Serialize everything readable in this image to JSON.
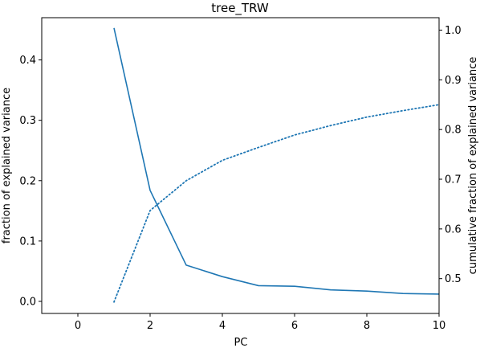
{
  "chart_data": {
    "type": "line",
    "title": "tree_TRW",
    "xlabel": "PC",
    "ylabel": "fraction of explained variance",
    "y2label": "cumulative fraction of explained variance",
    "xlim": [
      -1,
      10
    ],
    "ylim": [
      -0.02,
      0.47
    ],
    "y2lim": [
      0.43,
      1.025
    ],
    "xticks": [
      0,
      2,
      4,
      6,
      8,
      10
    ],
    "yticks": [
      0.0,
      0.1,
      0.2,
      0.3,
      0.4
    ],
    "y2ticks": [
      0.5,
      0.6,
      0.7,
      0.8,
      0.9,
      1.0
    ],
    "ytick_labels": [
      "0.0",
      "0.1",
      "0.2",
      "0.3",
      "0.4"
    ],
    "y2tick_labels": [
      "0.5",
      "0.6",
      "0.7",
      "0.8",
      "0.9",
      "1.0"
    ],
    "grid": false,
    "legend": "none",
    "series": [
      {
        "axis": "left",
        "style": "solid",
        "color": "#1f77b4",
        "x": [
          1,
          2,
          3,
          4,
          5,
          6,
          7,
          8,
          9,
          10
        ],
        "values": [
          0.453,
          0.184,
          0.06,
          0.041,
          0.026,
          0.025,
          0.019,
          0.017,
          0.013,
          0.012
        ]
      },
      {
        "axis": "right",
        "style": "dotted",
        "color": "#1f77b4",
        "x": [
          1,
          2,
          3,
          4,
          5,
          6,
          7,
          8,
          9,
          10
        ],
        "values": [
          0.453,
          0.637,
          0.697,
          0.738,
          0.764,
          0.789,
          0.808,
          0.825,
          0.838,
          0.85
        ]
      }
    ]
  }
}
